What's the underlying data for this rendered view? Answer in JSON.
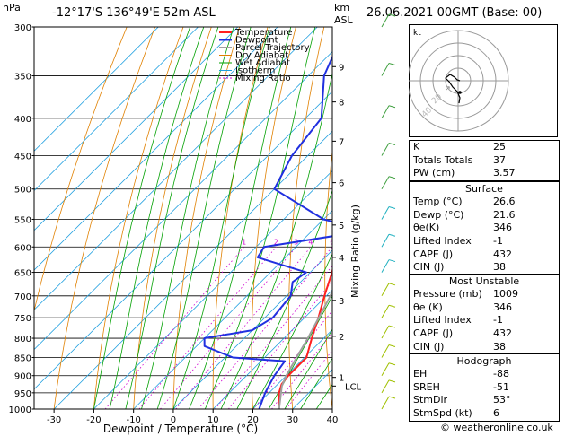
{
  "header": {
    "hpa_label": "hPa",
    "location": "-12°17'S  136°49'E  52m  ASL",
    "km_label": "km",
    "asl_label": "ASL",
    "datetime": "26.06.2021  00GMT  (Base: 00)"
  },
  "legend": [
    "Temperature",
    "Dewpoint",
    "Parcel Trajectory",
    "Dry Adiabat",
    "Wet Adiabat",
    "Isotherm",
    "Mixing Ratio"
  ],
  "colors": {
    "temperature": "#ff2020",
    "dewpoint": "#2030e0",
    "parcel": "#a0a0a0",
    "dry_adiabat": "#e08000",
    "wet_adiabat": "#00a000",
    "isotherm": "#20a0e0",
    "mixing_ratio": "#d000d0"
  },
  "chart_data": {
    "type": "line",
    "title": "",
    "xlabel": "Dewpoint / Temperature (°C)",
    "ylabel": "hPa",
    "y2label": "Mixing Ratio (g/kg)",
    "xlim": [
      -35,
      40
    ],
    "ylim": [
      1000,
      300
    ],
    "pressure_ticks": [
      300,
      350,
      400,
      450,
      500,
      550,
      600,
      650,
      700,
      750,
      800,
      850,
      900,
      950,
      1000
    ],
    "temp_ticks": [
      -30,
      -20,
      -10,
      0,
      10,
      20,
      30,
      40
    ],
    "km_ticks": [
      {
        "label": "1",
        "p": 905
      },
      {
        "label": "2",
        "p": 795
      },
      {
        "label": "3",
        "p": 710
      },
      {
        "label": "4",
        "p": 620
      },
      {
        "label": "5",
        "p": 560
      },
      {
        "label": "6",
        "p": 490
      },
      {
        "label": "7",
        "p": 430
      },
      {
        "label": "8",
        "p": 380
      },
      {
        "label": "9",
        "p": 340
      }
    ],
    "lcl_label": "LCL",
    "lcl_p": 930,
    "mixing_ratio_labels": [
      "1",
      "2",
      "3",
      "4",
      "6",
      "8",
      "10",
      "15",
      "20",
      "25"
    ],
    "mixing_ratio_values": [
      1,
      2,
      3,
      4,
      6,
      8,
      10,
      15,
      20,
      25
    ],
    "series": [
      {
        "name": "Temperature",
        "points": [
          [
            1000,
            26.6
          ],
          [
            950,
            22.5
          ],
          [
            925,
            21
          ],
          [
            900,
            20.5
          ],
          [
            850,
            20.5
          ],
          [
            800,
            17
          ],
          [
            750,
            13.5
          ],
          [
            700,
            9.5
          ],
          [
            650,
            5.5
          ],
          [
            600,
            0.5
          ],
          [
            550,
            -4.5
          ],
          [
            500,
            -9.5
          ],
          [
            450,
            -16
          ],
          [
            420,
            -18
          ],
          [
            400,
            -20
          ],
          [
            350,
            -27
          ],
          [
            300,
            -35
          ]
        ]
      },
      {
        "name": "Dewpoint",
        "points": [
          [
            1000,
            21.6
          ],
          [
            950,
            19
          ],
          [
            925,
            18
          ],
          [
            900,
            17
          ],
          [
            860,
            16
          ],
          [
            850,
            2
          ],
          [
            820,
            -8
          ],
          [
            800,
            -10
          ],
          [
            780,
            0
          ],
          [
            750,
            2
          ],
          [
            700,
            1
          ],
          [
            670,
            -2
          ],
          [
            650,
            -1
          ],
          [
            620,
            -17
          ],
          [
            600,
            -18
          ],
          [
            570,
            4
          ],
          [
            550,
            -10
          ],
          [
            500,
            -30
          ],
          [
            450,
            -34
          ],
          [
            400,
            -36
          ],
          [
            350,
            -46
          ],
          [
            320,
            -50
          ],
          [
            300,
            -53
          ]
        ]
      },
      {
        "name": "Parcel Trajectory",
        "points": [
          [
            1000,
            26.6
          ],
          [
            930,
            21.5
          ],
          [
            900,
            20
          ],
          [
            850,
            18
          ],
          [
            800,
            16
          ],
          [
            700,
            11
          ],
          [
            600,
            4
          ],
          [
            500,
            -5
          ],
          [
            400,
            -17
          ]
        ]
      }
    ]
  },
  "indices_table": {
    "rows": [
      {
        "label": "K",
        "value": "25"
      },
      {
        "label": "Totals Totals",
        "value": "37"
      },
      {
        "label": "PW (cm)",
        "value": "3.57"
      }
    ]
  },
  "surface_table": {
    "title": "Surface",
    "rows": [
      {
        "label": "Temp (°C)",
        "value": "26.6"
      },
      {
        "label": "Dewp (°C)",
        "value": "21.6"
      },
      {
        "label": "θe(K)",
        "value": "346"
      },
      {
        "label": "Lifted Index",
        "value": "-1"
      },
      {
        "label": "CAPE (J)",
        "value": "432"
      },
      {
        "label": "CIN (J)",
        "value": "38"
      }
    ]
  },
  "unstable_table": {
    "title": "Most Unstable",
    "rows": [
      {
        "label": "Pressure (mb)",
        "value": "1009"
      },
      {
        "label": "θe (K)",
        "value": "346"
      },
      {
        "label": "Lifted Index",
        "value": "-1"
      },
      {
        "label": "CAPE (J)",
        "value": "432"
      },
      {
        "label": "CIN (J)",
        "value": "38"
      }
    ]
  },
  "hodograph_table": {
    "title": "Hodograph",
    "rows": [
      {
        "label": "EH",
        "value": "-88"
      },
      {
        "label": "SREH",
        "value": "-51"
      },
      {
        "label": "StmDir",
        "value": "53°"
      },
      {
        "label": "StmSpd (kt)",
        "value": "6"
      }
    ]
  },
  "hodograph": {
    "unit_label": "kt",
    "ring_labels": [
      "20",
      "40"
    ]
  },
  "footer": {
    "credit": "© weatheronline.co.uk"
  }
}
